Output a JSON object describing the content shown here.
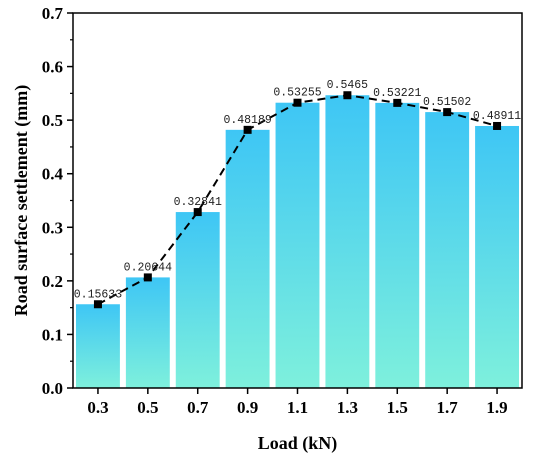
{
  "chart_data": {
    "type": "bar",
    "xlabel": "Load (kN)",
    "ylabel": "Road surface settlement (mm)",
    "categories": [
      "0.3",
      "0.5",
      "0.7",
      "0.9",
      "1.1",
      "1.3",
      "1.5",
      "1.7",
      "1.9"
    ],
    "values": [
      0.15633,
      0.20644,
      0.32841,
      0.48189,
      0.53255,
      0.5465,
      0.53221,
      0.51502,
      0.48911
    ],
    "data_labels": [
      "0.15633",
      "0.20644",
      "0.32841",
      "0.48189",
      "0.53255",
      "0.5465",
      "0.53221",
      "0.51502",
      "0.48911"
    ],
    "overlay": {
      "type": "line",
      "style": "dashed",
      "marker": "square",
      "color": "#000000"
    },
    "ylim": [
      0,
      0.7
    ],
    "yticks": [
      "0.0",
      "0.1",
      "0.2",
      "0.3",
      "0.4",
      "0.5",
      "0.6",
      "0.7"
    ],
    "grid": false,
    "colors": {
      "bar_top": "#3ec6f5",
      "bar_bottom": "#7ef0dc",
      "line": "#000000"
    }
  }
}
